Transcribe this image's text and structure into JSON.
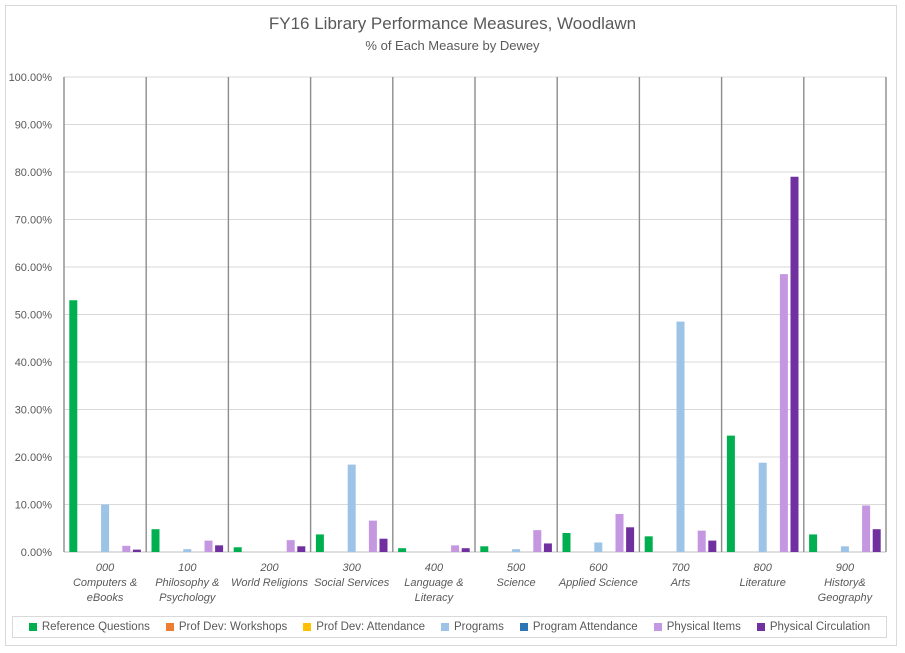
{
  "chart_data": {
    "type": "bar",
    "title": "FY16 Library Performance Measures, Woodlawn",
    "subtitle": "% of Each Measure by Dewey",
    "xlabel": "",
    "ylabel": "",
    "ylim": [
      0,
      100
    ],
    "y_ticks": [
      "0.00%",
      "10.00%",
      "20.00%",
      "30.00%",
      "40.00%",
      "50.00%",
      "60.00%",
      "70.00%",
      "80.00%",
      "90.00%",
      "100.00%"
    ],
    "categories": [
      [
        "000",
        "Computers &",
        "eBooks"
      ],
      [
        "100",
        "Philosophy &",
        "Psychology"
      ],
      [
        "200",
        "World Religions"
      ],
      [
        "300",
        "Social Services"
      ],
      [
        "400",
        "Language &",
        "Literacy"
      ],
      [
        "500",
        "Science"
      ],
      [
        "600",
        "Applied Science"
      ],
      [
        "700",
        "Arts"
      ],
      [
        "800",
        "Literature"
      ],
      [
        "900",
        "History&",
        "Geography"
      ]
    ],
    "series": [
      {
        "name": "Reference Questions",
        "color": "#00b050",
        "values": [
          53.0,
          4.8,
          1.0,
          3.7,
          0.8,
          1.2,
          4.0,
          3.3,
          24.5,
          3.7
        ]
      },
      {
        "name": "Prof Dev: Workshops",
        "color": "#ed7d31",
        "values": [
          0,
          0,
          0,
          0,
          0,
          0,
          0,
          0,
          0,
          0
        ]
      },
      {
        "name": "Prof Dev: Attendance",
        "color": "#ffc000",
        "values": [
          0,
          0,
          0,
          0,
          0,
          0,
          0,
          0,
          0,
          0
        ]
      },
      {
        "name": "Programs",
        "color": "#9dc3e6",
        "values": [
          10.0,
          0.6,
          0,
          18.4,
          0,
          0.6,
          2.0,
          48.5,
          18.8,
          1.2
        ]
      },
      {
        "name": "Program Attendance",
        "color": "#2e75b6",
        "values": [
          0,
          0,
          0,
          0,
          0,
          0,
          0,
          0,
          0,
          0
        ]
      },
      {
        "name": "Physical Items",
        "color": "#c497e0",
        "values": [
          1.3,
          2.4,
          2.5,
          6.6,
          1.4,
          4.6,
          8.0,
          4.5,
          58.5,
          9.8
        ]
      },
      {
        "name": "Physical Circulation",
        "color": "#7030a0",
        "values": [
          0.5,
          1.4,
          1.2,
          2.8,
          0.8,
          1.8,
          5.2,
          2.4,
          79.0,
          4.8
        ]
      }
    ]
  }
}
